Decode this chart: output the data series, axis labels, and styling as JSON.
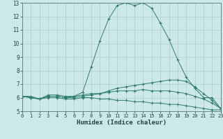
{
  "xlabel": "Humidex (Indice chaleur)",
  "background_color": "#cce8e8",
  "grid_color": "#b0cccc",
  "line_color": "#2e7d6e",
  "xlim": [
    0,
    23
  ],
  "ylim": [
    5,
    13
  ],
  "xticks": [
    0,
    1,
    2,
    3,
    4,
    5,
    6,
    7,
    8,
    9,
    10,
    11,
    12,
    13,
    14,
    15,
    16,
    17,
    18,
    19,
    20,
    21,
    22,
    23
  ],
  "yticks": [
    5,
    6,
    7,
    8,
    9,
    10,
    11,
    12,
    13
  ],
  "series": [
    {
      "x": [
        0,
        1,
        2,
        3,
        4,
        5,
        6,
        7,
        8,
        9,
        10,
        11,
        12,
        13,
        14,
        15,
        16,
        17,
        18,
        19,
        20,
        21,
        22,
        23
      ],
      "y": [
        6.1,
        6.1,
        5.9,
        6.2,
        6.2,
        6.1,
        6.1,
        6.4,
        8.3,
        10.2,
        11.8,
        12.8,
        13.0,
        12.8,
        13.0,
        12.6,
        11.5,
        10.3,
        8.8,
        7.5,
        6.7,
        6.0,
        6.0,
        5.2
      ],
      "linestyle": "-"
    },
    {
      "x": [
        0,
        1,
        2,
        3,
        4,
        5,
        6,
        7,
        8,
        9,
        10,
        11,
        12,
        13,
        14,
        15,
        16,
        17,
        18,
        19,
        20,
        21,
        22,
        23
      ],
      "y": [
        6.1,
        6.0,
        5.9,
        6.1,
        6.1,
        6.0,
        6.0,
        6.1,
        6.2,
        6.3,
        6.5,
        6.7,
        6.8,
        6.9,
        7.0,
        7.1,
        7.2,
        7.3,
        7.3,
        7.2,
        6.8,
        6.3,
        5.8,
        5.2
      ],
      "linestyle": "-"
    },
    {
      "x": [
        0,
        1,
        2,
        3,
        4,
        5,
        6,
        7,
        8,
        9,
        10,
        11,
        12,
        13,
        14,
        15,
        16,
        17,
        18,
        19,
        20,
        21,
        22,
        23
      ],
      "y": [
        6.1,
        6.0,
        5.9,
        6.1,
        6.1,
        6.0,
        6.1,
        6.2,
        6.3,
        6.3,
        6.4,
        6.5,
        6.5,
        6.5,
        6.6,
        6.5,
        6.5,
        6.5,
        6.4,
        6.3,
        6.1,
        5.9,
        5.6,
        5.2
      ],
      "linestyle": "-"
    },
    {
      "x": [
        0,
        1,
        2,
        3,
        4,
        5,
        6,
        7,
        8,
        9,
        10,
        11,
        12,
        13,
        14,
        15,
        16,
        17,
        18,
        19,
        20,
        21,
        22,
        23
      ],
      "y": [
        6.1,
        6.0,
        5.9,
        6.0,
        6.0,
        5.9,
        5.9,
        6.0,
        6.0,
        5.9,
        5.9,
        5.8,
        5.8,
        5.7,
        5.7,
        5.6,
        5.6,
        5.5,
        5.5,
        5.4,
        5.3,
        5.2,
        5.1,
        5.1
      ],
      "linestyle": "-"
    }
  ]
}
